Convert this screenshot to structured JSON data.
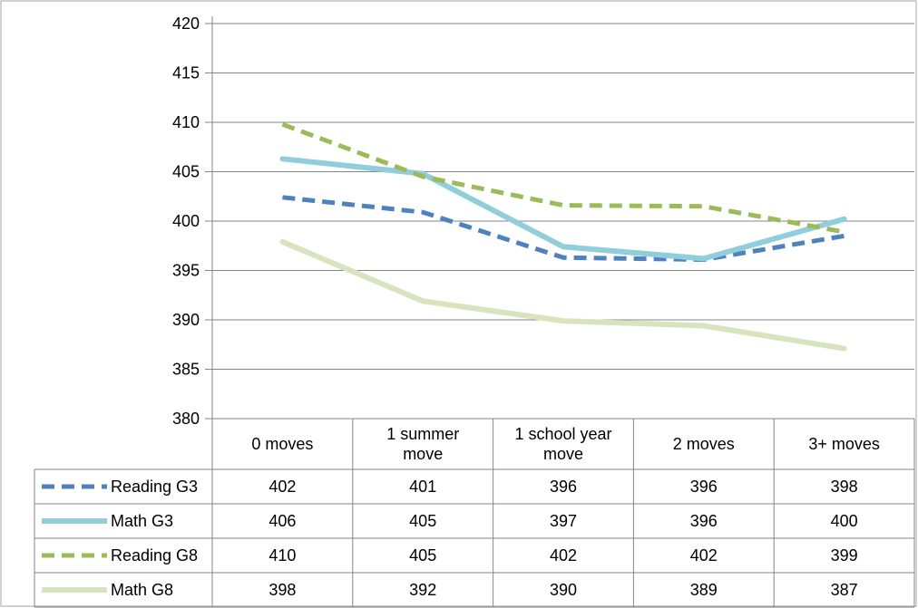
{
  "chart_data": {
    "type": "line",
    "title": "",
    "xlabel": "",
    "ylabel": "",
    "ylim": [
      380,
      420
    ],
    "yticks": [
      380,
      385,
      390,
      395,
      400,
      405,
      410,
      415,
      420
    ],
    "categories": [
      "0 moves",
      "1 summer move",
      "1 school year move",
      "2 moves",
      "3+ moves"
    ],
    "category_lines": [
      [
        "0 moves"
      ],
      [
        "1 summer",
        "move"
      ],
      [
        "1 school year",
        "move"
      ],
      [
        "2 moves"
      ],
      [
        "3+ moves"
      ]
    ],
    "grid": true,
    "legend": "data-table",
    "series": [
      {
        "name": "Reading G3",
        "dashed": true,
        "color": "#4f81bd",
        "values": [
          402.4,
          400.9,
          396.3,
          396.1,
          398.5
        ],
        "table_values": [
          "402",
          "401",
          "396",
          "396",
          "398"
        ]
      },
      {
        "name": "Math G3",
        "dashed": false,
        "color": "#92cddc",
        "values": [
          406.3,
          404.8,
          397.4,
          396.2,
          400.2
        ],
        "table_values": [
          "406",
          "405",
          "397",
          "396",
          "400"
        ]
      },
      {
        "name": "Reading G8",
        "dashed": true,
        "color": "#9bbb59",
        "values": [
          409.8,
          404.5,
          401.6,
          401.5,
          398.9
        ],
        "table_values": [
          "410",
          "405",
          "402",
          "402",
          "399"
        ]
      },
      {
        "name": "Math G8",
        "dashed": false,
        "color": "#d7e4bd",
        "values": [
          397.9,
          391.9,
          389.9,
          389.4,
          387.1
        ],
        "table_values": [
          "398",
          "392",
          "390",
          "389",
          "387"
        ]
      }
    ]
  }
}
